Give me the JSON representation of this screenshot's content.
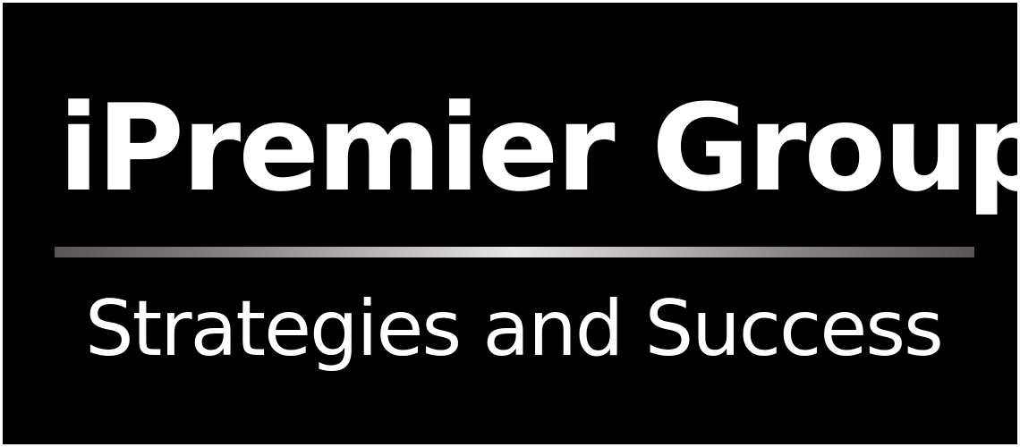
{
  "logo": {
    "title": "iPremier Group",
    "tagline": "Strategies and Success"
  },
  "colors": {
    "background": "#000000",
    "text": "#ffffff",
    "divider_center": "#e8e6e7",
    "divider_edge": "#5a5456"
  }
}
